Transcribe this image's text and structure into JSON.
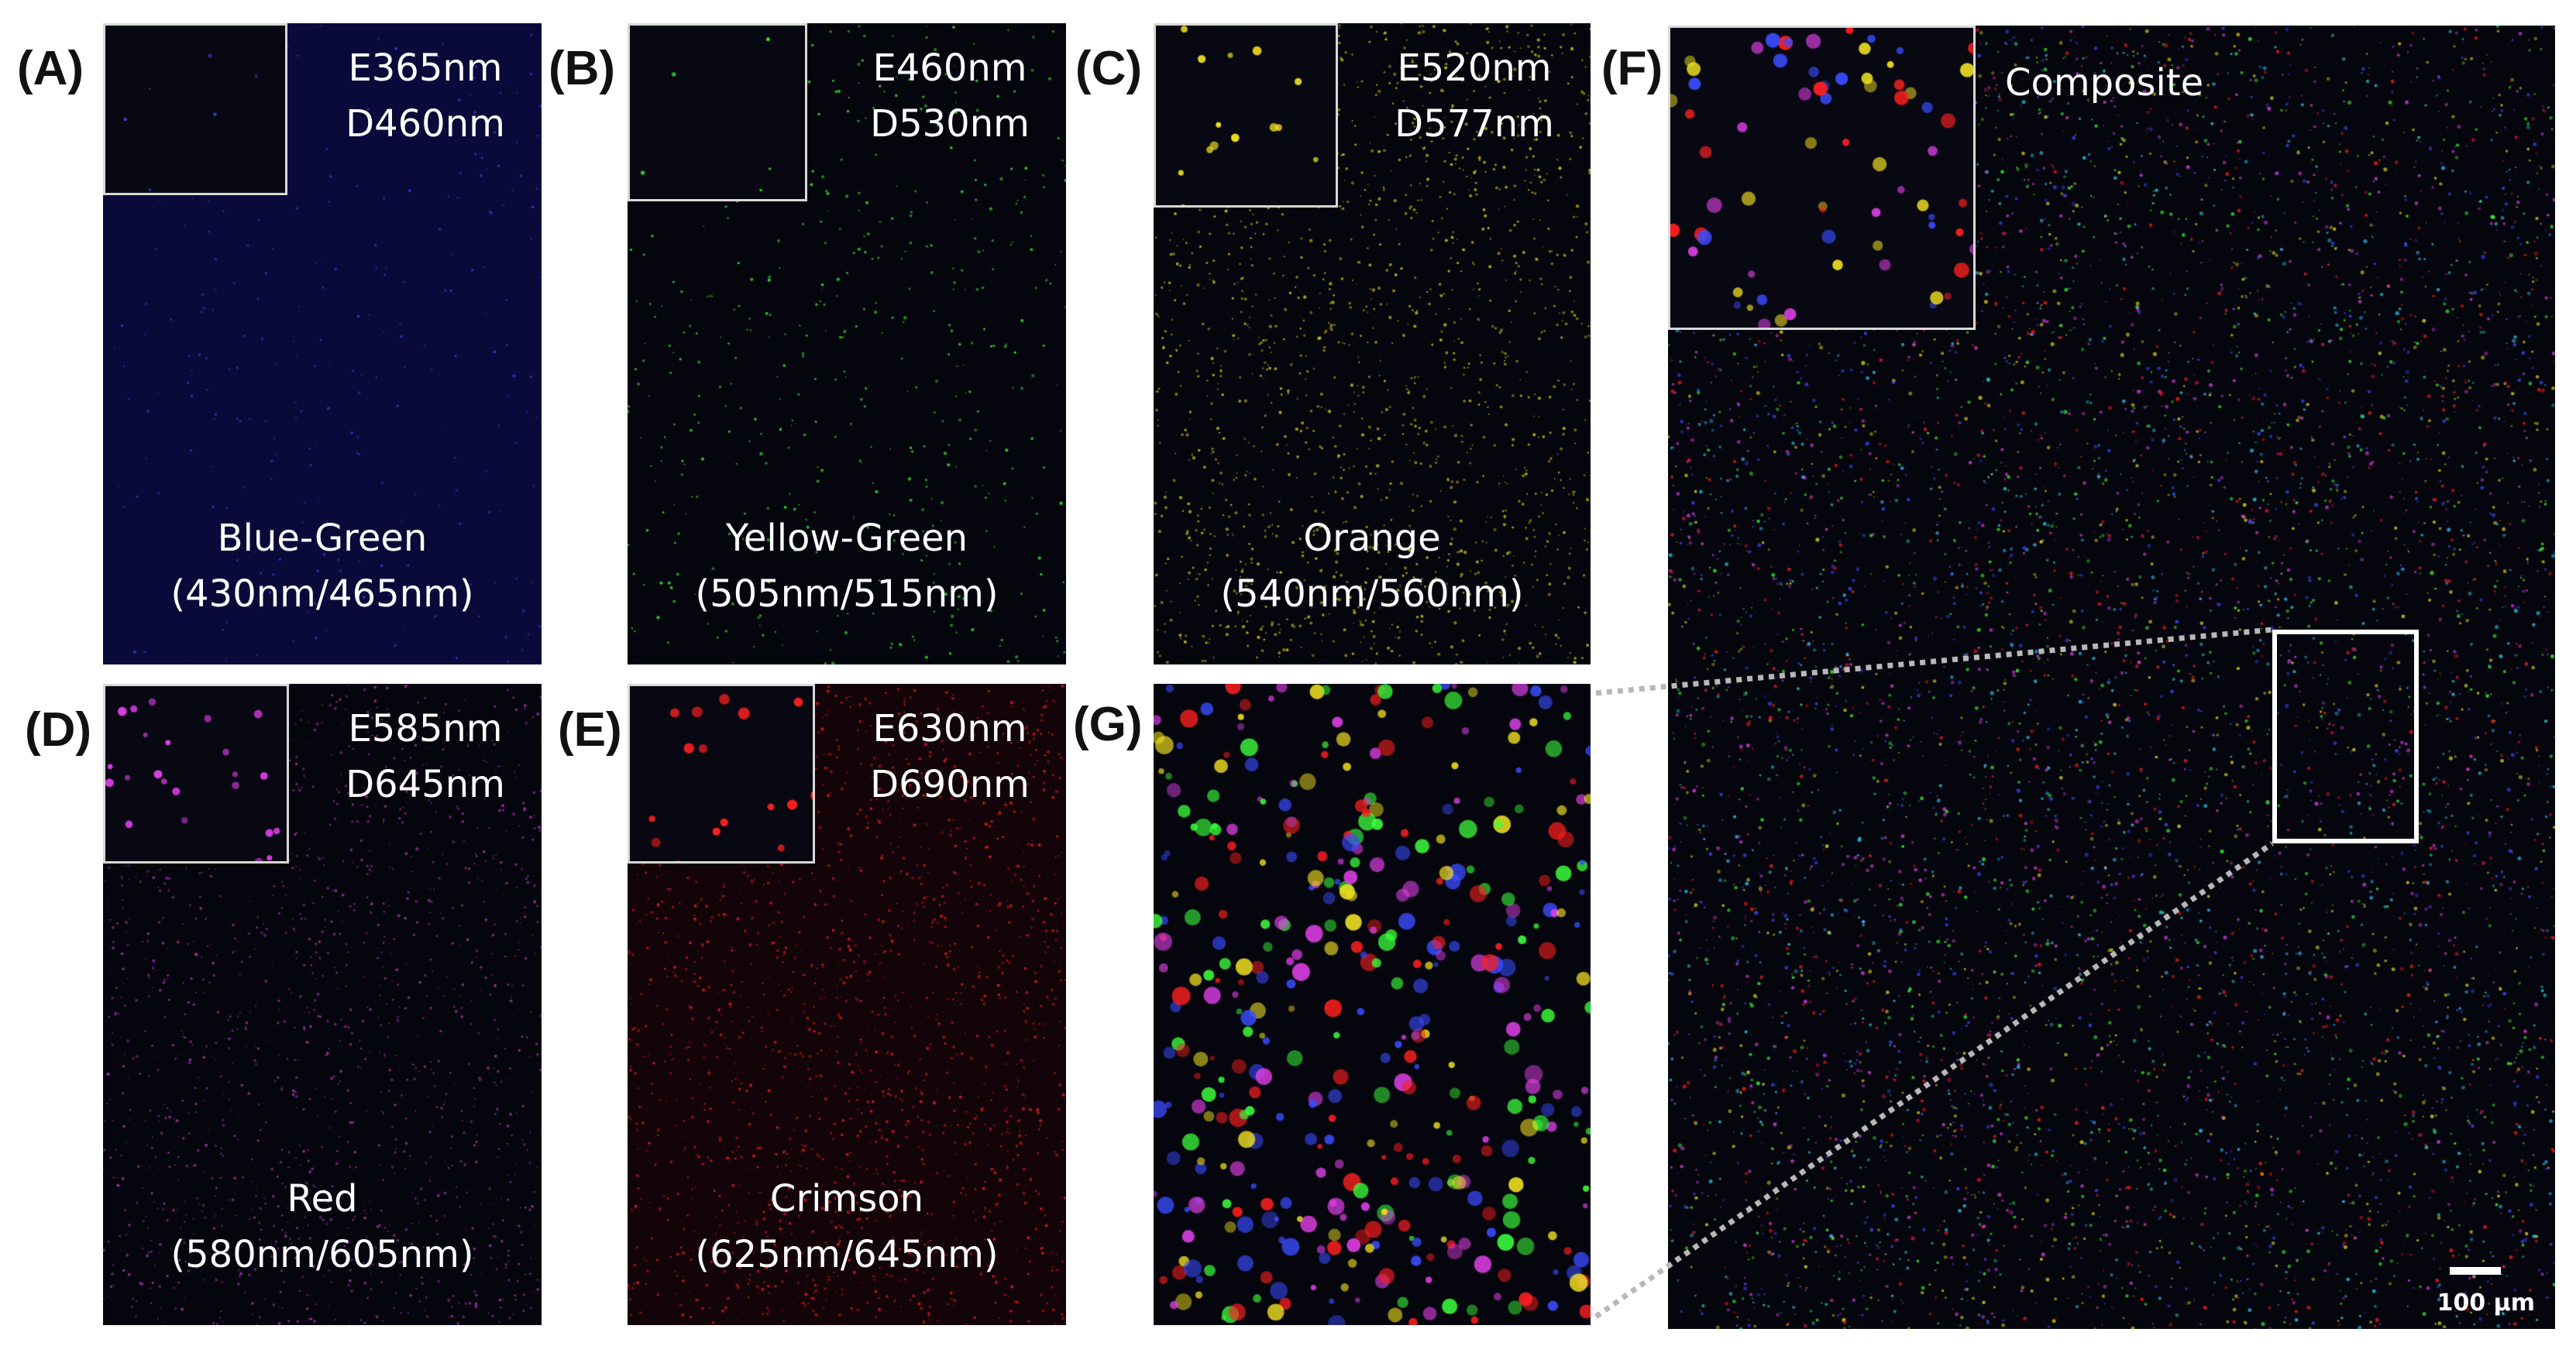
{
  "panels": {
    "a": {
      "label": "(A)",
      "excitation": "E365nm",
      "detection": "D460nm",
      "name": "Blue-Green",
      "range": "(430nm/465nm)"
    },
    "b": {
      "label": "(B)",
      "excitation": "E460nm",
      "detection": "D530nm",
      "name": "Yellow-Green",
      "range": "(505nm/515nm)"
    },
    "c": {
      "label": "(C)",
      "excitation": "E520nm",
      "detection": "D577nm",
      "name": "Orange",
      "range": "(540nm/560nm)"
    },
    "d": {
      "label": "(D)",
      "excitation": "E585nm",
      "detection": "D645nm",
      "name": "Red",
      "range": "(580nm/605nm)"
    },
    "e": {
      "label": "(E)",
      "excitation": "E630nm",
      "detection": "D690nm",
      "name": "Crimson",
      "range": "(625nm/645nm)"
    },
    "f": {
      "label": "(F)",
      "title": "Composite",
      "scale_bar": "100 µm"
    },
    "g": {
      "label": "(G)"
    }
  },
  "colors": {
    "blue": "#3a4cff",
    "green": "#3cff3c",
    "yellow": "#f0e020",
    "magenta": "#e040e8",
    "red": "#ff2020",
    "cyan": "#30d0ff",
    "background": "#05050d"
  }
}
